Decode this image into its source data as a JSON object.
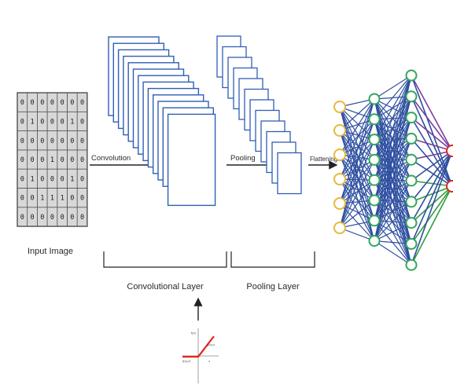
{
  "input_grid": [
    [
      "0",
      "0",
      "0",
      "0",
      "0",
      "0",
      "0"
    ],
    [
      "0",
      "1",
      "0",
      "0",
      "0",
      "1",
      "0"
    ],
    [
      "0",
      "0",
      "0",
      "0",
      "0",
      "0",
      "0"
    ],
    [
      "0",
      "0",
      "0",
      "1",
      "0",
      "0",
      "0"
    ],
    [
      "0",
      "1",
      "0",
      "0",
      "0",
      "1",
      "0"
    ],
    [
      "0",
      "0",
      "1",
      "1",
      "1",
      "0",
      "0"
    ],
    [
      "0",
      "0",
      "0",
      "0",
      "0",
      "0",
      "0"
    ]
  ],
  "labels": {
    "input_image": "Input Image",
    "convolution": "Convolution",
    "pooling": "Pooling",
    "flattening": "Flattening",
    "convolutional_layer": "Convolutional Layer",
    "pooling_layer": "Pooling Layer"
  },
  "relu_plot": {
    "fx_label": "f(x)",
    "max_label": "f(x)=x",
    "zero_label": "f(x)=0",
    "x_label": "x"
  },
  "network": {
    "layer_sizes": [
      6,
      8,
      10,
      2
    ],
    "colors": {
      "input_node": "#e7b83c",
      "hidden_node": "#33a55a",
      "output_node": "#d42a2a",
      "edge": "#2e4fa0",
      "edge_purple": "#7a3fa0",
      "edge_green": "#2f9e3c"
    }
  },
  "colors": {
    "feature_map_border": "#2f5fb5",
    "grid_fill": "#d8d8d8",
    "relu_line": "#e0251b",
    "arrow": "#222222"
  }
}
